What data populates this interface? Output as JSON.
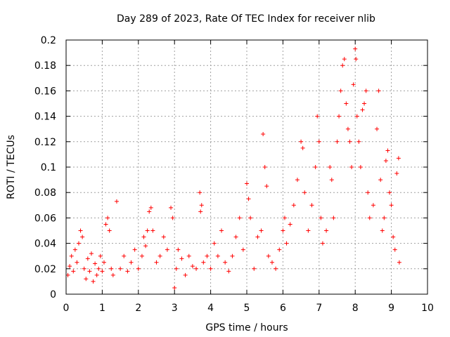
{
  "chart_data": {
    "type": "scatter",
    "title": "Day 289 of 2023, Rate Of TEC Index for receiver nlib",
    "xlabel": "GPS time / hours",
    "ylabel": "ROTI / TECUs",
    "xlim": [
      0,
      10
    ],
    "ylim": [
      0,
      0.2
    ],
    "x_ticks": [
      "0",
      "1",
      "2",
      "3",
      "4",
      "5",
      "6",
      "7",
      "8",
      "9",
      "10"
    ],
    "y_ticks": [
      "0",
      "0.02",
      "0.04",
      "0.06",
      "0.08",
      "0.1",
      "0.12",
      "0.14",
      "0.16",
      "0.18",
      "0.2"
    ],
    "grid": true,
    "marker": "+",
    "color": "#ff0000",
    "series": [
      {
        "points": [
          [
            0.05,
            0.015
          ],
          [
            0.1,
            0.022
          ],
          [
            0.15,
            0.03
          ],
          [
            0.2,
            0.018
          ],
          [
            0.25,
            0.035
          ],
          [
            0.3,
            0.025
          ],
          [
            0.35,
            0.04
          ],
          [
            0.4,
            0.05
          ],
          [
            0.45,
            0.045
          ],
          [
            0.5,
            0.02
          ],
          [
            0.55,
            0.012
          ],
          [
            0.6,
            0.028
          ],
          [
            0.65,
            0.018
          ],
          [
            0.7,
            0.032
          ],
          [
            0.75,
            0.01
          ],
          [
            0.8,
            0.024
          ],
          [
            0.85,
            0.015
          ],
          [
            0.9,
            0.02
          ],
          [
            0.95,
            0.03
          ],
          [
            1.0,
            0.018
          ],
          [
            1.05,
            0.025
          ],
          [
            1.1,
            0.055
          ],
          [
            1.15,
            0.06
          ],
          [
            1.2,
            0.05
          ],
          [
            1.25,
            0.02
          ],
          [
            1.3,
            0.015
          ],
          [
            1.4,
            0.073
          ],
          [
            1.5,
            0.02
          ],
          [
            1.6,
            0.03
          ],
          [
            1.7,
            0.018
          ],
          [
            1.8,
            0.025
          ],
          [
            1.9,
            0.035
          ],
          [
            2.0,
            0.02
          ],
          [
            2.1,
            0.03
          ],
          [
            2.15,
            0.045
          ],
          [
            2.2,
            0.038
          ],
          [
            2.25,
            0.05
          ],
          [
            2.3,
            0.065
          ],
          [
            2.35,
            0.068
          ],
          [
            2.4,
            0.05
          ],
          [
            2.5,
            0.025
          ],
          [
            2.6,
            0.03
          ],
          [
            2.7,
            0.045
          ],
          [
            2.8,
            0.035
          ],
          [
            2.9,
            0.068
          ],
          [
            2.95,
            0.06
          ],
          [
            3.0,
            0.005
          ],
          [
            3.05,
            0.02
          ],
          [
            3.1,
            0.035
          ],
          [
            3.2,
            0.028
          ],
          [
            3.3,
            0.015
          ],
          [
            3.4,
            0.03
          ],
          [
            3.5,
            0.022
          ],
          [
            3.6,
            0.02
          ],
          [
            3.7,
            0.08
          ],
          [
            3.72,
            0.065
          ],
          [
            3.75,
            0.07
          ],
          [
            3.8,
            0.025
          ],
          [
            3.9,
            0.03
          ],
          [
            4.0,
            0.02
          ],
          [
            4.1,
            0.04
          ],
          [
            4.2,
            0.03
          ],
          [
            4.3,
            0.05
          ],
          [
            4.4,
            0.025
          ],
          [
            4.5,
            0.018
          ],
          [
            4.6,
            0.03
          ],
          [
            4.7,
            0.045
          ],
          [
            4.8,
            0.06
          ],
          [
            4.9,
            0.035
          ],
          [
            5.0,
            0.087
          ],
          [
            5.05,
            0.075
          ],
          [
            5.1,
            0.06
          ],
          [
            5.2,
            0.02
          ],
          [
            5.3,
            0.045
          ],
          [
            5.4,
            0.05
          ],
          [
            5.45,
            0.126
          ],
          [
            5.5,
            0.1
          ],
          [
            5.55,
            0.085
          ],
          [
            5.6,
            0.03
          ],
          [
            5.7,
            0.025
          ],
          [
            5.8,
            0.02
          ],
          [
            5.9,
            0.035
          ],
          [
            6.0,
            0.05
          ],
          [
            6.05,
            0.06
          ],
          [
            6.1,
            0.04
          ],
          [
            6.2,
            0.055
          ],
          [
            6.3,
            0.07
          ],
          [
            6.4,
            0.09
          ],
          [
            6.5,
            0.12
          ],
          [
            6.55,
            0.115
          ],
          [
            6.6,
            0.08
          ],
          [
            6.7,
            0.05
          ],
          [
            6.8,
            0.07
          ],
          [
            6.9,
            0.1
          ],
          [
            6.95,
            0.14
          ],
          [
            7.0,
            0.12
          ],
          [
            7.05,
            0.06
          ],
          [
            7.1,
            0.04
          ],
          [
            7.2,
            0.05
          ],
          [
            7.3,
            0.1
          ],
          [
            7.35,
            0.09
          ],
          [
            7.4,
            0.06
          ],
          [
            7.5,
            0.12
          ],
          [
            7.55,
            0.14
          ],
          [
            7.6,
            0.16
          ],
          [
            7.65,
            0.18
          ],
          [
            7.7,
            0.185
          ],
          [
            7.75,
            0.15
          ],
          [
            7.8,
            0.13
          ],
          [
            7.85,
            0.12
          ],
          [
            7.9,
            0.1
          ],
          [
            7.95,
            0.165
          ],
          [
            8.0,
            0.193
          ],
          [
            8.02,
            0.185
          ],
          [
            8.05,
            0.14
          ],
          [
            8.1,
            0.12
          ],
          [
            8.15,
            0.1
          ],
          [
            8.2,
            0.145
          ],
          [
            8.25,
            0.15
          ],
          [
            8.3,
            0.16
          ],
          [
            8.35,
            0.08
          ],
          [
            8.4,
            0.06
          ],
          [
            8.5,
            0.07
          ],
          [
            8.6,
            0.13
          ],
          [
            8.65,
            0.16
          ],
          [
            8.7,
            0.09
          ],
          [
            8.75,
            0.05
          ],
          [
            8.8,
            0.06
          ],
          [
            8.85,
            0.105
          ],
          [
            8.9,
            0.113
          ],
          [
            8.95,
            0.08
          ],
          [
            9.0,
            0.07
          ],
          [
            9.05,
            0.045
          ],
          [
            9.1,
            0.035
          ],
          [
            9.15,
            0.095
          ],
          [
            9.2,
            0.107
          ],
          [
            9.22,
            0.025
          ]
        ]
      }
    ]
  }
}
